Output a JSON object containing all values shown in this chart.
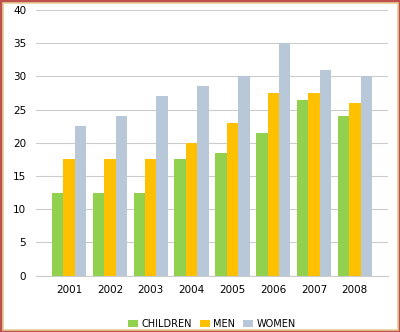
{
  "years": [
    2001,
    2002,
    2003,
    2004,
    2005,
    2006,
    2007,
    2008
  ],
  "children": [
    12.5,
    12.5,
    12.5,
    17.5,
    18.5,
    21.5,
    26.5,
    24.0
  ],
  "men": [
    17.5,
    17.5,
    17.5,
    20.0,
    23.0,
    27.5,
    27.5,
    26.0
  ],
  "women": [
    22.5,
    24.0,
    27.0,
    28.5,
    30.0,
    35.0,
    31.0,
    30.0
  ],
  "colors": {
    "children": "#92D050",
    "men": "#FFC000",
    "women": "#B8C8D8"
  },
  "legend_labels": [
    "CHILDREN",
    "MEN",
    "WOMEN"
  ],
  "ylim": [
    0,
    40
  ],
  "yticks": [
    0,
    5,
    10,
    15,
    20,
    25,
    30,
    35,
    40
  ],
  "border_color": "#C0504D",
  "outer_border_color": "#E8D5A0",
  "background_color": "#FFFFFF",
  "plot_bg_color": "#FFFFFF",
  "grid_color": "#CCCCCC",
  "bar_width": 0.28,
  "figsize": [
    4.0,
    3.32
  ],
  "dpi": 100
}
